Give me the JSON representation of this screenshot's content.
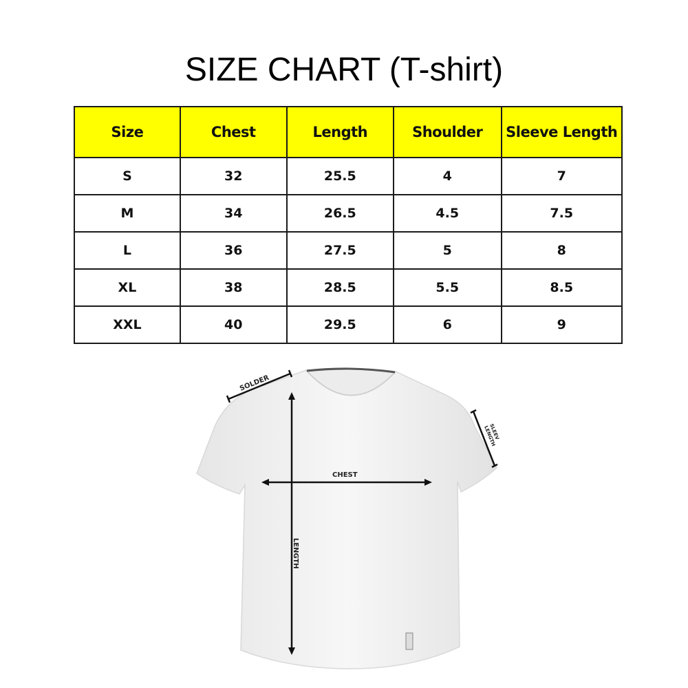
{
  "title": "SIZE CHART (T-shirt)",
  "table": {
    "headers": [
      "Size",
      "Chest",
      "Length",
      "Shoulder",
      "Sleeve Length"
    ],
    "rows": [
      [
        "S",
        "32",
        "25.5",
        "4",
        "7"
      ],
      [
        "M",
        "34",
        "26.5",
        "4.5",
        "7.5"
      ],
      [
        "L",
        "36",
        "27.5",
        "5",
        "8"
      ],
      [
        "XL",
        "38",
        "28.5",
        "5.5",
        "8.5"
      ],
      [
        "XXL",
        "40",
        "29.5",
        "6",
        "9"
      ]
    ],
    "header_color": "#ffff00"
  },
  "diagram": {
    "labels": {
      "shoulder": "SOLDER",
      "sleeve_1": "SLEEV",
      "sleeve_2": "LENGTH",
      "chest": "CHEST",
      "length": "LENGTH"
    }
  }
}
